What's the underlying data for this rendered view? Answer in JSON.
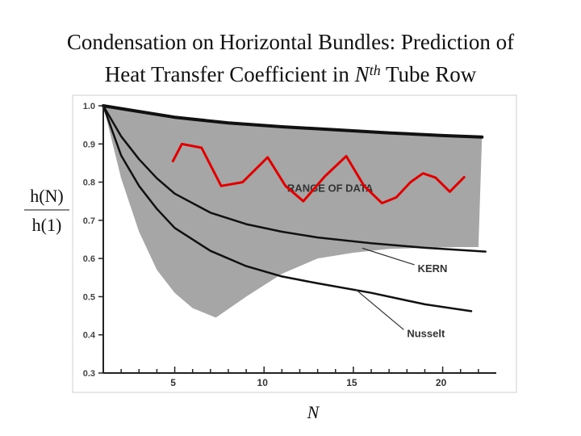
{
  "title": {
    "line1": "Condensation on Horizontal Bundles: Prediction of",
    "line2_pre": "Heat Transfer Coefficient in ",
    "line2_var": "N",
    "line2_sup": "th",
    "line2_post": " Tube Row"
  },
  "colors": {
    "range_fill": "#a6a6a6",
    "curve": "#111111",
    "wave": "#e00000",
    "frame": "#c8c8c8"
  },
  "chart_data": {
    "type": "line",
    "xlabel": "N",
    "ylabel": {
      "numerator": "h(N)",
      "denominator": "h(1)"
    },
    "xlim": [
      1,
      23
    ],
    "ylim": [
      0.3,
      1.0
    ],
    "xticks": [
      5,
      10,
      15,
      20
    ],
    "yticks": [
      "0.3",
      "0.4",
      "0.5",
      "0.6",
      "0.7",
      "0.8",
      "0.9",
      "1.0"
    ],
    "series": [
      {
        "name": "",
        "role": "upper-bound",
        "x": [
          1,
          3,
          5,
          8,
          11,
          14,
          17,
          20,
          22.2
        ],
        "y": [
          1.0,
          0.985,
          0.97,
          0.955,
          0.945,
          0.937,
          0.929,
          0.922,
          0.918
        ]
      },
      {
        "name": "KERN",
        "x": [
          1,
          2,
          3,
          4,
          5,
          7,
          9,
          11,
          13,
          16,
          19,
          22.4
        ],
        "y": [
          1.0,
          0.92,
          0.86,
          0.81,
          0.77,
          0.72,
          0.69,
          0.67,
          0.655,
          0.64,
          0.628,
          0.618
        ]
      },
      {
        "name": "Nusselt",
        "x": [
          1,
          2,
          3,
          4,
          5,
          7,
          9,
          11,
          13,
          16,
          19,
          21.6
        ],
        "y": [
          1.0,
          0.87,
          0.79,
          0.73,
          0.68,
          0.62,
          0.58,
          0.553,
          0.535,
          0.51,
          0.48,
          0.462
        ]
      },
      {
        "name": "",
        "role": "lower-bound",
        "x": [
          1,
          2,
          3,
          4,
          5,
          6,
          7.3,
          9,
          11,
          13,
          15,
          17,
          19,
          21,
          22
        ],
        "y": [
          1.0,
          0.81,
          0.67,
          0.57,
          0.51,
          0.47,
          0.445,
          0.5,
          0.56,
          0.6,
          0.615,
          0.625,
          0.628,
          0.63,
          0.63
        ]
      }
    ],
    "annotations": [
      {
        "text": "RANGE OF DATA",
        "x": 13.7,
        "y": 0.785
      },
      {
        "text": "KERN",
        "x": 18.6,
        "y": 0.575,
        "arrow_to": [
          15.5,
          0.627
        ]
      },
      {
        "text": "Nusselt",
        "x": 18.0,
        "y": 0.405,
        "arrow_to": [
          15.1,
          0.52
        ]
      }
    ],
    "overlay_wave": {
      "x": [
        4.9,
        5.4,
        6.5,
        7.6,
        8.8,
        10.2,
        11.2,
        12.2,
        13.4,
        14.6,
        15.6,
        16.6,
        17.4,
        18.2,
        18.9,
        19.6,
        20.4,
        21.2
      ],
      "y": [
        0.855,
        0.9,
        0.89,
        0.79,
        0.8,
        0.865,
        0.79,
        0.75,
        0.815,
        0.868,
        0.79,
        0.745,
        0.76,
        0.8,
        0.823,
        0.812,
        0.775,
        0.813
      ]
    }
  }
}
